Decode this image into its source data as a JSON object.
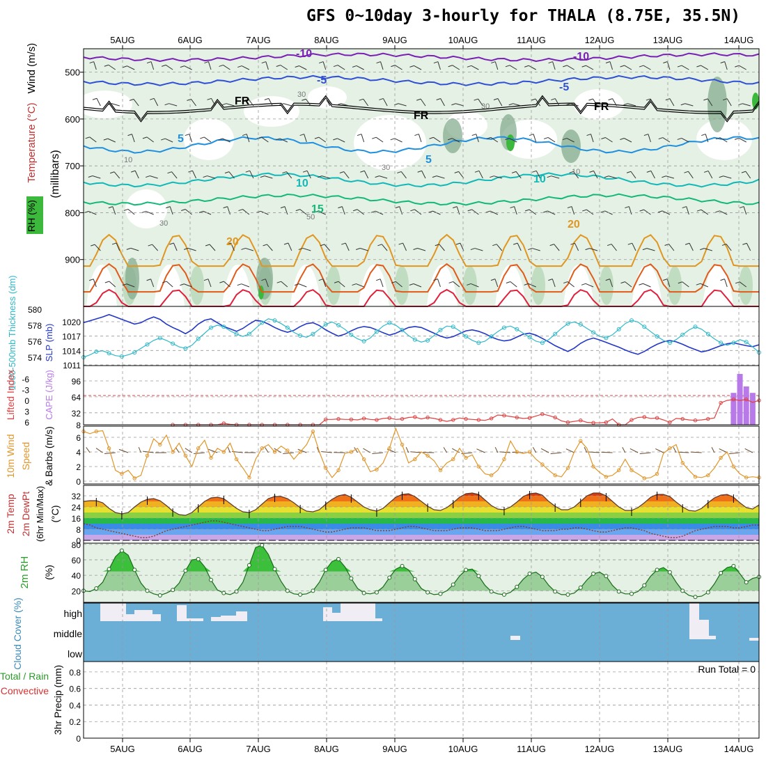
{
  "title": "GFS 0~10day 3-hourly for THALA (8.75E, 35.5N)",
  "colors": {
    "rh_light": "#e4f1e4",
    "rh_mid": "#b8d8b8",
    "rh_dark": "#7fa88a",
    "rh_sat": "#3cb83c",
    "temp_m10": "#7a1fb5",
    "temp_m5": "#2e4fd6",
    "temp_5": "#1f8fe0",
    "temp_10": "#11b8b8",
    "temp_15": "#13b878",
    "temp_20": "#e0961f",
    "temp_25": "#e05a1a",
    "temp_30": "#e01f3a",
    "slp": "#2236c8",
    "thickness": "#2fb8c8",
    "lifted": "#e04040",
    "cape": "#b87ae8",
    "wind": "#e0962a",
    "cloud_bg": "#6baed6",
    "cloud_fill": "#f0eef4"
  },
  "chart_data": [
    {
      "panel": "upper-air",
      "type": "contour",
      "x": [
        "5AUG",
        "6AUG",
        "7AUG",
        "8AUG",
        "9AUG",
        "10AUG",
        "11AUG",
        "12AUG",
        "13AUG",
        "14AUG"
      ],
      "ylabel": "(millibars)",
      "ylabel_left": [
        "RH (%)",
        "Temperature (°C)",
        "Wind (m/s)"
      ],
      "yticks": [
        500,
        600,
        700,
        800,
        900
      ],
      "ylim": [
        1000,
        450
      ],
      "temperature_labels": [
        "-10",
        "-5",
        "FR",
        "5",
        "10",
        "15",
        "20"
      ],
      "rh_labels": [
        "30",
        "50",
        "10"
      ]
    },
    {
      "panel": "slp-thickness",
      "type": "line",
      "ylabel_left": "1000-500mb Thickness (dm)",
      "ylabel_right": "SLP (mb)",
      "yticks_left": [
        574,
        576,
        578,
        580
      ],
      "yticks_right": [
        1011,
        1014,
        1017,
        1020
      ],
      "series": [
        {
          "name": "SLP (mb)",
          "values": [
            1019.8,
            1020.2,
            1020.6,
            1021.0,
            1021.5,
            1021.0,
            1020.5,
            1020.0,
            1019.5,
            1019.8,
            1020.5,
            1021.0,
            1020.5,
            1019.5,
            1018.8,
            1018.2,
            1017.5,
            1018.3,
            1019.5,
            1020.3,
            1020.6,
            1019.8,
            1019.0,
            1018.5,
            1018.0,
            1018.6,
            1019.5,
            1020.3,
            1020.1,
            1019.5,
            1018.8,
            1018.2,
            1017.8,
            1018.2,
            1019.0,
            1019.6,
            1019.8,
            1019.2,
            1018.3,
            1017.6,
            1017.0,
            1017.4,
            1018.1,
            1018.7,
            1019.0,
            1018.8,
            1018.3,
            1017.7,
            1017.2,
            1017.6,
            1018.2,
            1018.8,
            1019.0,
            1018.8,
            1018.2,
            1017.6,
            1017.0,
            1016.6,
            1016.9,
            1017.5,
            1018.1,
            1018.3,
            1018.0,
            1017.5,
            1016.8,
            1016.3,
            1016.0,
            1016.2,
            1016.8,
            1017.4,
            1017.6,
            1017.2,
            1016.5,
            1015.8,
            1015.0,
            1014.4,
            1013.8,
            1014.5,
            1015.5,
            1016.2,
            1016.6,
            1016.2,
            1015.7,
            1015.2,
            1014.7,
            1014.1,
            1013.6,
            1013.2,
            1013.8,
            1014.6,
            1015.3,
            1015.8,
            1016.1,
            1015.8,
            1015.3,
            1014.7,
            1014.2,
            1013.7,
            1014.0,
            1014.5,
            1015.0,
            1015.4,
            1015.6,
            1015.3,
            1015.0,
            1014.8,
            1015.2
          ]
        },
        {
          "name": "1000-500mb Thickness (dm)",
          "values": [
            574.0,
            574.3,
            574.7,
            574.8,
            574.5,
            574.2,
            574.1,
            574.3,
            574.6,
            575.1,
            575.6,
            576.1,
            576.4,
            576.1,
            575.7,
            575.3,
            575.1,
            575.5,
            576.3,
            577.0,
            577.7,
            578.0,
            577.8,
            577.3,
            576.9,
            576.6,
            576.9,
            577.6,
            578.3,
            578.8,
            578.6,
            578.2,
            577.7,
            577.1,
            576.7,
            576.5,
            576.9,
            577.5,
            578.1,
            578.4,
            578.0,
            577.5,
            576.8,
            576.3,
            576.0,
            576.4,
            577.2,
            577.9,
            578.3,
            578.0,
            577.4,
            576.7,
            576.2,
            575.9,
            576.1,
            576.7,
            577.4,
            577.9,
            577.8,
            577.3,
            576.6,
            576.1,
            575.8,
            576.0,
            576.6,
            577.2,
            577.7,
            577.9,
            577.5,
            577.0,
            576.5,
            576.0,
            575.8,
            576.2,
            576.9,
            577.6,
            578.2,
            578.4,
            578.1,
            577.6,
            577.1,
            576.6,
            576.4,
            576.8,
            577.5,
            578.2,
            578.6,
            578.4,
            577.8,
            577.2,
            576.6,
            576.1,
            575.8,
            576.2,
            576.8,
            577.4,
            577.8,
            577.5,
            576.9,
            576.3,
            575.8,
            575.5,
            575.8,
            576.2,
            575.9,
            575.3,
            574.6
          ]
        }
      ]
    },
    {
      "panel": "lifted-cape",
      "type": "line+bar",
      "ylabel_left": "Lifted Index",
      "ylabel_right": "CAPE (J/kg)",
      "yticks_left": [
        "-6",
        "-3",
        "0",
        "3",
        "6"
      ],
      "yticks_right": [
        8,
        32,
        64,
        96
      ],
      "series": [
        {
          "name": "Lifted Index",
          "values": [
            6,
            6,
            6,
            6,
            6,
            6,
            6,
            6,
            5.7,
            5.9,
            6,
            6,
            6,
            6,
            6,
            6,
            6,
            6,
            6,
            6,
            6,
            6,
            6,
            6,
            4.9,
            4.9,
            4.8,
            4.9,
            4.9,
            5.0,
            4.7,
            4.9,
            5.0,
            4.7,
            4.6,
            4.9,
            4.8,
            4.5,
            4.4,
            4.8,
            4.5,
            4.7,
            5.0,
            5.3,
            5.0,
            4.6,
            4.8,
            4.9,
            5.0,
            5.1,
            4.7,
            4.0,
            4.1,
            4.3,
            4.5,
            4.7,
            4.6,
            4.2,
            3.8,
            4.1,
            4.5,
            5.2,
            5.5,
            5.3,
            5.1,
            5.5,
            5.6,
            5.6,
            5.5,
            4.8,
            6,
            6,
            5.0,
            4.5,
            4.4,
            4.7,
            4.6,
            5.0,
            5.5,
            4.7,
            4.8,
            5.0,
            5.1,
            5.0,
            4.8,
            4.6,
            1.5,
            1.0,
            0.8,
            1.0,
            0.8,
            1.4,
            1.0
          ]
        },
        {
          "name": "CAPE (J/kg)",
          "values": [
            0,
            0,
            0,
            0,
            0,
            0,
            0,
            0,
            0,
            0,
            0,
            0,
            0,
            0,
            0,
            0,
            0,
            0,
            0,
            0,
            0,
            0,
            0,
            0,
            0,
            0,
            0,
            0,
            0,
            0,
            0,
            0,
            0,
            0,
            0,
            0,
            0,
            0,
            0,
            0,
            0,
            0,
            0,
            0,
            0,
            0,
            0,
            0,
            0,
            0,
            0,
            0,
            0,
            0,
            0,
            0,
            0,
            0,
            0,
            0,
            0,
            0,
            0,
            0,
            0,
            0,
            0,
            0,
            0,
            0,
            0,
            0,
            0,
            0,
            0,
            0,
            0,
            0,
            0,
            0,
            0,
            0,
            0,
            0,
            0,
            0,
            0,
            0,
            0,
            0,
            0,
            0,
            0,
            0,
            0,
            0,
            0,
            0,
            0,
            0,
            0,
            0,
            72,
            110,
            85,
            72,
            0
          ]
        }
      ]
    },
    {
      "panel": "10m-wind",
      "type": "line",
      "ylabel": "10m Wind Speed & Barbs (m/s)",
      "yticks": [
        0,
        2,
        4,
        6
      ],
      "series": [
        {
          "name": "10m Wind Speed",
          "values": [
            6.8,
            6.5,
            6.8,
            6.9,
            4.5,
            1.5,
            1.0,
            1.5,
            0.4,
            0.8,
            3.5,
            5.8,
            5.0,
            6.3,
            4.0,
            5.2,
            3.5,
            2.0,
            4.5,
            5.6,
            3.2,
            4.5,
            4.0,
            5.2,
            3.0,
            1.8,
            0.5,
            3.0,
            4.5,
            5.0,
            4.0,
            4.8,
            4.2,
            3.0,
            4.0,
            5.0,
            6.8,
            4.0,
            1.8,
            0.5,
            1.5,
            3.8,
            4.0,
            4.5,
            3.0,
            1.3,
            1.6,
            2.5,
            4.5,
            7.2,
            5.0,
            2.5,
            3.0,
            4.0,
            3.5,
            2.8,
            1.5,
            2.5,
            3.0,
            4.5,
            3.2,
            3.6,
            2.0,
            1.0,
            0.8,
            1.5,
            3.0,
            5.5,
            4.0,
            3.8,
            4.0,
            3.0,
            2.3,
            1.5,
            0.8,
            0.6,
            1.8,
            4.0,
            5.5,
            4.5,
            2.0,
            1.2,
            0.6,
            0.8,
            1.5,
            3.0,
            1.5,
            1.0,
            0.4,
            0.5,
            1.0,
            3.8,
            4.5,
            5.0,
            2.5,
            1.5,
            0.6,
            0.5,
            0.8,
            1.8,
            3.2,
            4.0,
            2.0,
            1.0,
            0.5,
            0.6,
            0.5
          ]
        }
      ]
    },
    {
      "panel": "2m-temp",
      "type": "line",
      "ylabel": "2m Temp 2m DewPt (6hr Min/Max) (°C)",
      "yticks": [
        0,
        8,
        16,
        24,
        32
      ],
      "series": [
        {
          "name": "2m Temp",
          "values": [
            28,
            28.5,
            28.5,
            27,
            23,
            20,
            19,
            20,
            24,
            27.5,
            29.5,
            30,
            28.5,
            25,
            21,
            18.5,
            18,
            20,
            24,
            28,
            30.5,
            31,
            30,
            26.5,
            23,
            20.5,
            20,
            22,
            26,
            30,
            31.5,
            31.5,
            30,
            27,
            23.5,
            21,
            20.5,
            22,
            26,
            29.5,
            32,
            33,
            31,
            27.5,
            24,
            22,
            21,
            23,
            27,
            31,
            33,
            33.5,
            31.5,
            28,
            24.5,
            22,
            21.5,
            23.5,
            27,
            31,
            33.5,
            34,
            33,
            29,
            25,
            22.5,
            22,
            24,
            27.5,
            31.5,
            33.5,
            34,
            32.5,
            28,
            24.5,
            22,
            22,
            24,
            28,
            32,
            34,
            34,
            32,
            28,
            24,
            21.5,
            21.5,
            23.5,
            27,
            31,
            33,
            33,
            31.5,
            27.5,
            24,
            21.5,
            21,
            23,
            27,
            30.5,
            32.5,
            33,
            31,
            27,
            23.5,
            22.5,
            25.5
          ]
        },
        {
          "name": "2m DewPt",
          "values": [
            12,
            11,
            9,
            8,
            7,
            6,
            5,
            4,
            3,
            2,
            2,
            3,
            5,
            7,
            8,
            9,
            10,
            11,
            12,
            13,
            14,
            14,
            13,
            12,
            11,
            10,
            9,
            8,
            7,
            7,
            8,
            9,
            10,
            10,
            10,
            9,
            8,
            7,
            6,
            6,
            7,
            8,
            9,
            9,
            9,
            8,
            7,
            7,
            7,
            8,
            9,
            10,
            10,
            9,
            8,
            7,
            7,
            7,
            8,
            9,
            9,
            9,
            8,
            7,
            7,
            7,
            8,
            9,
            10,
            10,
            9,
            8,
            7,
            7,
            7,
            8,
            8,
            9,
            9,
            8,
            7,
            6,
            6,
            7,
            8,
            9,
            9,
            8,
            7,
            5,
            4,
            3,
            2,
            2,
            3,
            5,
            7,
            8,
            9,
            10,
            10,
            10,
            9,
            9,
            10,
            11,
            11
          ]
        }
      ]
    },
    {
      "panel": "2m-rh",
      "type": "area",
      "ylabel": "2m RH (%)",
      "yticks": [
        20,
        40,
        60,
        80
      ],
      "series": [
        {
          "name": "2m RH",
          "values": [
            20,
            19,
            23,
            31,
            48,
            64,
            72,
            66,
            47,
            30,
            20,
            16,
            14,
            17,
            21,
            30,
            46,
            60,
            61,
            51,
            34,
            21,
            17,
            15,
            19,
            31,
            53,
            76,
            79,
            67,
            48,
            32,
            20,
            16,
            15,
            16,
            20,
            31,
            47,
            58,
            61,
            51,
            36,
            23,
            17,
            16,
            18,
            25,
            37,
            48,
            52,
            47,
            35,
            23,
            18,
            15,
            16,
            20,
            28,
            39,
            47,
            48,
            39,
            27,
            19,
            16,
            15,
            18,
            25,
            35,
            42,
            44,
            38,
            27,
            19,
            15,
            15,
            17,
            24,
            34,
            42,
            44,
            39,
            27,
            19,
            16,
            16,
            19,
            27,
            39,
            47,
            50,
            44,
            31,
            20,
            14,
            12,
            13,
            18,
            29,
            43,
            50,
            52,
            42,
            31,
            36,
            38
          ]
        }
      ]
    },
    {
      "panel": "cloud-cover",
      "type": "area",
      "ylabel": "Cloud Cover (%)",
      "ylevels": [
        "high",
        "middle",
        "low"
      ]
    },
    {
      "panel": "precip",
      "type": "bar",
      "ylabel_left": [
        "Total / Rain",
        "Convective"
      ],
      "ylabel": "3hr Precip (mm)",
      "yticks": [
        0,
        0.2,
        0.4,
        0.6,
        0.8
      ],
      "ylim": [
        0,
        0.9
      ],
      "run_total": "Run Total = 0",
      "x": [
        "5AUG",
        "6AUG",
        "7AUG",
        "8AUG",
        "9AUG",
        "10AUG",
        "11AUG",
        "12AUG",
        "13AUG",
        "14AUG"
      ]
    }
  ]
}
